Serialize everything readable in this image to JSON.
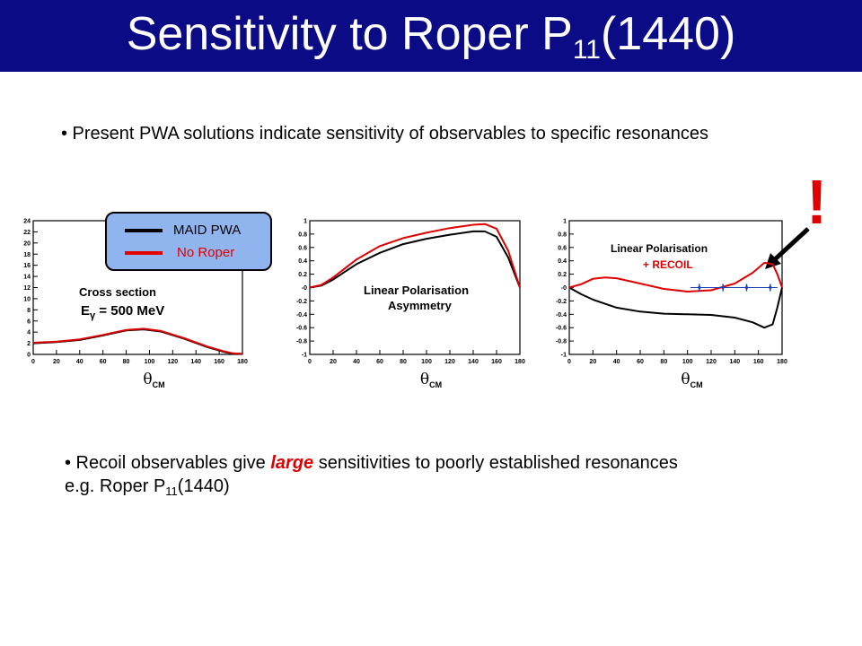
{
  "slide": {
    "title_main": "Sensitivity to Roper P",
    "title_sub": "11",
    "title_tail": "(1440)",
    "bullet1": "• Present PWA solutions indicate sensitivity of observables to specific resonances",
    "bullet2_pre": "• Recoil observables give ",
    "bullet2_em": "large",
    "bullet2_mid": " sensitivities to poorly established resonances e.g. Roper P",
    "bullet2_sub": "11",
    "bullet2_tail": "(1440)",
    "exclamation": "!"
  },
  "legend": {
    "entries": [
      {
        "label": "MAID PWA",
        "color": "#000000"
      },
      {
        "label": "No Roper",
        "color": "#e00000"
      }
    ],
    "box_color": "#8fb4ee"
  },
  "chart_data": [
    {
      "type": "line",
      "title": "Cross section",
      "subtitle_pre": "E",
      "subtitle_sub": "γ",
      "subtitle_post": " = 500 MeV",
      "xlabel": "θ",
      "xlabel_sub": "CM",
      "xlim": [
        0,
        180
      ],
      "ylim": [
        0,
        24
      ],
      "xticks": [
        0,
        20,
        40,
        60,
        80,
        100,
        120,
        140,
        160,
        180
      ],
      "yticks": [
        0,
        2,
        4,
        6,
        8,
        10,
        12,
        14,
        16,
        18,
        20,
        22,
        24
      ],
      "series": [
        {
          "name": "MAID PWA",
          "color": "#000000",
          "x": [
            0,
            20,
            40,
            60,
            80,
            95,
            110,
            130,
            150,
            165,
            172,
            180
          ],
          "y": [
            2.0,
            2.2,
            2.6,
            3.4,
            4.3,
            4.5,
            4.1,
            2.8,
            1.3,
            0.4,
            0.15,
            0.1
          ]
        },
        {
          "name": "No Roper",
          "color": "#e00000",
          "x": [
            0,
            20,
            40,
            60,
            80,
            95,
            110,
            130,
            150,
            165,
            172,
            180
          ],
          "y": [
            2.1,
            2.3,
            2.7,
            3.5,
            4.4,
            4.6,
            4.2,
            2.9,
            1.4,
            0.5,
            0.2,
            0.1
          ]
        }
      ]
    },
    {
      "type": "line",
      "title": "Linear Polarisation",
      "subtitle": "Asymmetry",
      "xlabel": "θ",
      "xlabel_sub": "CM",
      "xlim": [
        0,
        180
      ],
      "ylim": [
        -1,
        1
      ],
      "xticks": [
        0,
        20,
        40,
        60,
        80,
        100,
        120,
        140,
        160,
        180
      ],
      "yticks": [
        -1,
        -0.8,
        -0.6,
        -0.4,
        -0.2,
        0,
        0.2,
        0.4,
        0.6,
        0.8,
        1
      ],
      "ytick_labels": [
        "-1",
        "-0.8",
        "-0.6",
        "-0.4",
        "-0.2",
        "-0",
        "0.2",
        "0.4",
        "0.6",
        "0.8",
        "1"
      ],
      "series": [
        {
          "name": "MAID PWA",
          "color": "#000000",
          "x": [
            0,
            10,
            20,
            40,
            60,
            80,
            100,
            120,
            140,
            150,
            160,
            170,
            180
          ],
          "y": [
            0.0,
            0.03,
            0.12,
            0.35,
            0.52,
            0.65,
            0.73,
            0.79,
            0.84,
            0.84,
            0.76,
            0.45,
            0.0
          ]
        },
        {
          "name": "No Roper",
          "color": "#e00000",
          "x": [
            0,
            10,
            20,
            40,
            60,
            80,
            100,
            120,
            140,
            150,
            160,
            170,
            180
          ],
          "y": [
            0.0,
            0.04,
            0.15,
            0.42,
            0.62,
            0.74,
            0.82,
            0.89,
            0.94,
            0.95,
            0.88,
            0.55,
            0.0
          ]
        }
      ]
    },
    {
      "type": "line",
      "title": "Linear Polarisation",
      "subtitle": "+ RECOIL",
      "xlabel": "θ",
      "xlabel_sub": "CM",
      "xlim": [
        0,
        180
      ],
      "ylim": [
        -1,
        1
      ],
      "xticks": [
        0,
        20,
        40,
        60,
        80,
        100,
        120,
        140,
        160,
        180
      ],
      "yticks": [
        -1,
        -0.8,
        -0.6,
        -0.4,
        -0.2,
        0,
        0.2,
        0.4,
        0.6,
        0.8,
        1
      ],
      "ytick_labels": [
        "-1",
        "-0.8",
        "-0.6",
        "-0.4",
        "-0.2",
        "-0",
        "0.2",
        "0.4",
        "0.6",
        "0.8",
        "1"
      ],
      "series": [
        {
          "name": "MAID PWA",
          "color": "#000000",
          "x": [
            0,
            10,
            20,
            40,
            60,
            80,
            100,
            120,
            140,
            155,
            165,
            172,
            176,
            180
          ],
          "y": [
            0.0,
            -0.1,
            -0.18,
            -0.3,
            -0.36,
            -0.39,
            -0.4,
            -0.41,
            -0.45,
            -0.52,
            -0.6,
            -0.55,
            -0.3,
            0.0
          ]
        },
        {
          "name": "No Roper",
          "color": "#e00000",
          "x": [
            0,
            10,
            20,
            30,
            40,
            60,
            80,
            100,
            120,
            140,
            155,
            165,
            172,
            176,
            180
          ],
          "y": [
            0.0,
            0.05,
            0.13,
            0.15,
            0.14,
            0.06,
            -0.02,
            -0.06,
            -0.04,
            0.06,
            0.22,
            0.37,
            0.35,
            0.2,
            0.0
          ]
        },
        {
          "name": "data points",
          "color": "#1a3fb8",
          "x": [
            110,
            130,
            150,
            170
          ],
          "y": [
            0.0,
            0.0,
            0.0,
            0.0
          ]
        }
      ]
    }
  ]
}
